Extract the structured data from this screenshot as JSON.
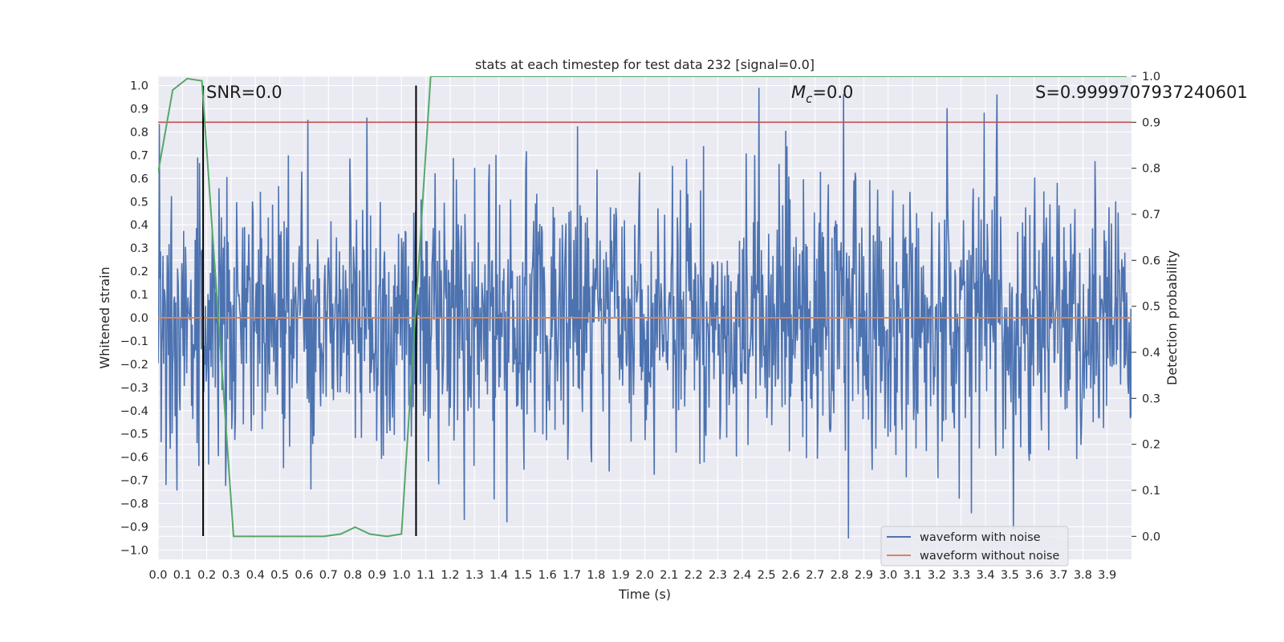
{
  "chart_data": {
    "type": "line",
    "title": "stats at each timestep for test data 232 [signal=0.0]",
    "xlabel": "Time (s)",
    "ylabel": "Whitened strain",
    "y2label": "Detection probability",
    "xlim": [
      0.0,
      4.0
    ],
    "ylim": [
      -1.04,
      1.04
    ],
    "y2lim": [
      -0.05,
      1.0
    ],
    "xticks": [
      "0.0",
      "0.1",
      "0.2",
      "0.3",
      "0.4",
      "0.5",
      "0.6",
      "0.7",
      "0.8",
      "0.9",
      "1.0",
      "1.1",
      "1.2",
      "1.3",
      "1.4",
      "1.5",
      "1.6",
      "1.7",
      "1.8",
      "1.9",
      "2.0",
      "2.1",
      "2.2",
      "2.3",
      "2.4",
      "2.5",
      "2.6",
      "2.7",
      "2.8",
      "2.9",
      "3.0",
      "3.1",
      "3.2",
      "3.3",
      "3.4",
      "3.5",
      "3.6",
      "3.7",
      "3.8",
      "3.9"
    ],
    "yticks": [
      "1.0",
      "0.9",
      "0.8",
      "0.7",
      "0.6",
      "0.5",
      "0.4",
      "0.3",
      "0.2",
      "0.1",
      "0.0",
      "−0.1",
      "−0.2",
      "−0.3",
      "−0.4",
      "−0.5",
      "−0.6",
      "−0.7",
      "−0.8",
      "−0.9",
      "−1.0"
    ],
    "y2ticks": [
      "1.0",
      "0.9",
      "0.8",
      "0.7",
      "0.6",
      "0.5",
      "0.4",
      "0.3",
      "0.2",
      "0.1",
      "0.0"
    ],
    "grid": true,
    "legend_position": "lower right",
    "annotations": {
      "snr": "SNR=0.0",
      "mc_base": "M",
      "mc_sub": "c",
      "mc_value": "=0.0",
      "s": "S=0.9999707937240601"
    },
    "series": [
      {
        "name": "waveform with noise",
        "axis": "left",
        "color": "#4c72b0",
        "description": "whitened noise, amplitude roughly within ±1.0 (sampled)",
        "n_samples": 1600,
        "seed": 232
      },
      {
        "name": "waveform without noise",
        "axis": "left",
        "color": "#dd8452",
        "x": [
          0.0,
          4.0
        ],
        "y": [
          0.0,
          0.0
        ]
      },
      {
        "axis": "right",
        "color": "#55a868",
        "x": [
          0.0,
          0.06,
          0.12,
          0.18,
          0.31,
          0.4,
          0.5,
          0.6,
          0.68,
          0.75,
          0.81,
          0.87,
          0.94,
          1.0,
          1.12,
          3.98
        ],
        "y": [
          0.79,
          0.97,
          0.995,
          0.99,
          0.0,
          0.0,
          0.0,
          0.0,
          0.0,
          0.005,
          0.02,
          0.005,
          0.0,
          0.005,
          1.0,
          1.0
        ]
      }
    ],
    "reference_lines": {
      "threshold": {
        "axis": "right",
        "y": 0.9,
        "color": "#c44e52"
      },
      "vertical": {
        "x": [
          0.185,
          1.06
        ],
        "y_range": [
          -0.94,
          1.0
        ],
        "color": "#000000"
      }
    }
  }
}
